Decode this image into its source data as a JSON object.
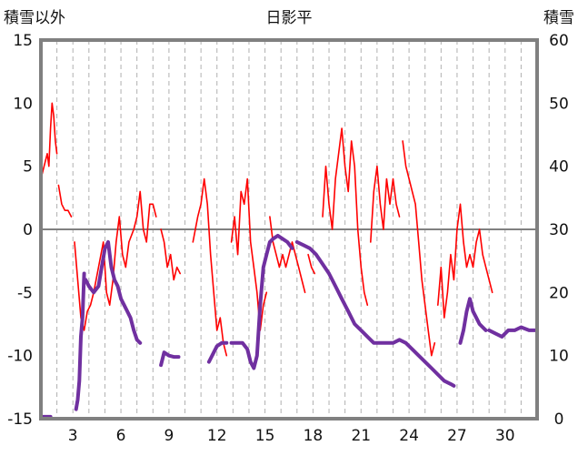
{
  "chart_data": {
    "type": "line",
    "title": "日影平",
    "y_left_label": "積雪以外",
    "y_right_label": "積雪",
    "x_ticks": [
      "3",
      "6",
      "9",
      "12",
      "15",
      "18",
      "21",
      "24",
      "27",
      "30"
    ],
    "x_tick_values": [
      3,
      6,
      9,
      12,
      15,
      18,
      21,
      24,
      27,
      30
    ],
    "xlim": [
      1,
      32
    ],
    "ylim_left": [
      -15,
      15
    ],
    "ylim_right": [
      0,
      60
    ],
    "y_left_ticks": [
      "15",
      "10",
      "5",
      "0",
      "-5",
      "-10",
      "-15"
    ],
    "y_right_ticks": [
      "60",
      "50",
      "40",
      "30",
      "20",
      "10",
      "0"
    ],
    "grid": "vertical dashed daily lines",
    "zero_line": 0,
    "colors": {
      "temperature": "#ff0000",
      "snow": "#7030a0",
      "frame": "#808080",
      "grid": "#b0b0b0"
    },
    "series": [
      {
        "axis": "left",
        "color": "#ff0000",
        "segments": [
          [
            [
              1.0,
              4
            ],
            [
              1.2,
              5
            ],
            [
              1.4,
              6
            ],
            [
              1.5,
              5
            ],
            [
              1.6,
              8
            ],
            [
              1.7,
              10
            ],
            [
              1.8,
              9
            ],
            [
              1.9,
              7
            ],
            [
              2.0,
              6
            ]
          ],
          [
            [
              2.1,
              3.5
            ],
            [
              2.3,
              2
            ],
            [
              2.5,
              1.5
            ],
            [
              2.7,
              1.5
            ],
            [
              2.9,
              1
            ]
          ],
          [
            [
              3.1,
              -1
            ],
            [
              3.3,
              -4
            ],
            [
              3.5,
              -7
            ],
            [
              3.7,
              -8
            ],
            [
              3.9,
              -6.5
            ],
            [
              4.1,
              -6
            ],
            [
              4.3,
              -5
            ],
            [
              4.6,
              -3
            ],
            [
              4.9,
              -1
            ],
            [
              5.1,
              -5
            ],
            [
              5.3,
              -6
            ],
            [
              5.5,
              -4
            ],
            [
              5.7,
              -1
            ],
            [
              5.9,
              1
            ],
            [
              6.1,
              -2
            ],
            [
              6.3,
              -3
            ],
            [
              6.5,
              -1
            ],
            [
              6.8,
              0
            ],
            [
              7.0,
              1
            ],
            [
              7.2,
              3
            ],
            [
              7.4,
              0
            ],
            [
              7.6,
              -1
            ],
            [
              7.8,
              2
            ],
            [
              8.0,
              2
            ],
            [
              8.2,
              1
            ]
          ],
          [
            [
              8.5,
              0
            ],
            [
              8.7,
              -1
            ],
            [
              8.9,
              -3
            ],
            [
              9.1,
              -2
            ],
            [
              9.3,
              -4
            ],
            [
              9.5,
              -3
            ],
            [
              9.7,
              -3.5
            ]
          ],
          [
            [
              10.5,
              -1
            ],
            [
              10.8,
              1
            ],
            [
              11.0,
              2
            ],
            [
              11.2,
              4
            ],
            [
              11.4,
              2
            ],
            [
              11.6,
              -2
            ],
            [
              11.8,
              -5
            ],
            [
              12.0,
              -8
            ],
            [
              12.2,
              -7
            ],
            [
              12.4,
              -9
            ],
            [
              12.6,
              -10
            ]
          ],
          [
            [
              12.9,
              -1
            ],
            [
              13.1,
              1
            ],
            [
              13.3,
              -2
            ],
            [
              13.5,
              3
            ],
            [
              13.7,
              2
            ],
            [
              13.9,
              4
            ],
            [
              14.1,
              -1
            ],
            [
              14.3,
              -3
            ],
            [
              14.5,
              -5
            ],
            [
              14.7,
              -8
            ],
            [
              14.9,
              -6
            ],
            [
              15.1,
              -5
            ]
          ],
          [
            [
              15.3,
              1
            ],
            [
              15.5,
              -1
            ],
            [
              15.7,
              -2
            ],
            [
              15.9,
              -3
            ],
            [
              16.1,
              -2
            ],
            [
              16.3,
              -3
            ],
            [
              16.5,
              -2
            ],
            [
              16.7,
              -1
            ],
            [
              16.9,
              -2
            ],
            [
              17.1,
              -3
            ],
            [
              17.3,
              -4
            ],
            [
              17.5,
              -5
            ]
          ],
          [
            [
              17.7,
              -2
            ],
            [
              17.9,
              -3
            ],
            [
              18.1,
              -3.5
            ]
          ],
          [
            [
              18.6,
              1
            ],
            [
              18.8,
              5
            ],
            [
              19.0,
              2
            ],
            [
              19.2,
              0
            ],
            [
              19.4,
              4
            ],
            [
              19.6,
              6
            ],
            [
              19.8,
              8
            ],
            [
              20.0,
              5
            ],
            [
              20.2,
              3
            ],
            [
              20.4,
              7
            ],
            [
              20.6,
              5
            ],
            [
              20.8,
              0
            ],
            [
              21.0,
              -3
            ],
            [
              21.2,
              -5
            ],
            [
              21.4,
              -6
            ]
          ],
          [
            [
              21.6,
              -1
            ],
            [
              21.8,
              3
            ],
            [
              22.0,
              5
            ],
            [
              22.2,
              2
            ],
            [
              22.4,
              0
            ],
            [
              22.6,
              4
            ],
            [
              22.8,
              2
            ],
            [
              23.0,
              4
            ],
            [
              23.2,
              2
            ],
            [
              23.4,
              1
            ]
          ],
          [
            [
              23.6,
              7
            ],
            [
              23.8,
              5
            ],
            [
              24.0,
              4
            ],
            [
              24.2,
              3
            ],
            [
              24.4,
              2
            ],
            [
              24.6,
              -1
            ],
            [
              24.8,
              -4
            ],
            [
              25.0,
              -6
            ],
            [
              25.2,
              -8
            ],
            [
              25.4,
              -10
            ],
            [
              25.6,
              -9
            ]
          ],
          [
            [
              25.8,
              -6
            ],
            [
              26.0,
              -3
            ],
            [
              26.2,
              -7
            ],
            [
              26.4,
              -5
            ],
            [
              26.6,
              -2
            ],
            [
              26.8,
              -4
            ],
            [
              27.0,
              0
            ],
            [
              27.2,
              2
            ],
            [
              27.4,
              -1
            ],
            [
              27.6,
              -3
            ],
            [
              27.8,
              -2
            ],
            [
              28.0,
              -3
            ],
            [
              28.2,
              -1
            ],
            [
              28.4,
              0
            ],
            [
              28.6,
              -2
            ],
            [
              28.8,
              -3
            ],
            [
              29.0,
              -4
            ],
            [
              29.2,
              -5
            ]
          ]
        ]
      },
      {
        "axis": "right",
        "color": "#7030a0",
        "segments": [
          [
            [
              1.0,
              0.3
            ],
            [
              1.6,
              0.3
            ]
          ],
          [
            [
              3.2,
              1.5
            ],
            [
              3.3,
              3
            ],
            [
              3.4,
              6
            ],
            [
              3.5,
              13
            ],
            [
              3.6,
              16
            ],
            [
              3.7,
              23
            ]
          ],
          [
            [
              3.8,
              22
            ],
            [
              4.0,
              21
            ],
            [
              4.3,
              20
            ],
            [
              4.6,
              21
            ],
            [
              4.8,
              24
            ],
            [
              5.0,
              27
            ],
            [
              5.2,
              28
            ],
            [
              5.4,
              24
            ],
            [
              5.6,
              22
            ],
            [
              5.8,
              21
            ],
            [
              6.0,
              19
            ],
            [
              6.2,
              18
            ],
            [
              6.4,
              17
            ],
            [
              6.6,
              16
            ],
            [
              6.8,
              14
            ],
            [
              7.0,
              12.5
            ],
            [
              7.2,
              12
            ]
          ],
          [
            [
              8.5,
              8.5
            ],
            [
              8.7,
              10.5
            ],
            [
              9.0,
              10
            ],
            [
              9.3,
              9.8
            ],
            [
              9.6,
              9.8
            ]
          ],
          [
            [
              11.5,
              9
            ],
            [
              11.8,
              10.5
            ],
            [
              12.0,
              11.5
            ],
            [
              12.3,
              12
            ],
            [
              12.6,
              12
            ]
          ],
          [
            [
              12.9,
              12
            ],
            [
              13.3,
              12
            ],
            [
              13.6,
              12
            ],
            [
              13.9,
              11
            ],
            [
              14.1,
              9
            ],
            [
              14.3,
              8
            ],
            [
              14.5,
              10
            ],
            [
              14.7,
              18
            ],
            [
              14.9,
              24
            ],
            [
              15.1,
              26
            ],
            [
              15.3,
              28
            ],
            [
              15.5,
              28.5
            ],
            [
              15.8,
              29
            ],
            [
              16.1,
              28.5
            ],
            [
              16.4,
              28
            ],
            [
              16.7,
              27
            ]
          ],
          [
            [
              17.0,
              28
            ],
            [
              17.4,
              27.5
            ],
            [
              17.8,
              27
            ],
            [
              18.2,
              26
            ],
            [
              18.6,
              24.5
            ],
            [
              19.0,
              23
            ],
            [
              19.4,
              21
            ],
            [
              19.8,
              19
            ],
            [
              20.2,
              17
            ],
            [
              20.6,
              15
            ],
            [
              21.0,
              14
            ],
            [
              21.4,
              13
            ],
            [
              21.8,
              12
            ],
            [
              22.2,
              12
            ],
            [
              22.6,
              12
            ],
            [
              23.0,
              12
            ],
            [
              23.4,
              12.5
            ],
            [
              23.8,
              12
            ],
            [
              24.2,
              11
            ],
            [
              24.6,
              10
            ],
            [
              25.0,
              9
            ],
            [
              25.4,
              8
            ],
            [
              25.8,
              7
            ],
            [
              26.2,
              6
            ],
            [
              26.6,
              5.5
            ],
            [
              26.8,
              5.2
            ]
          ],
          [
            [
              27.2,
              12
            ],
            [
              27.4,
              14
            ],
            [
              27.6,
              17
            ],
            [
              27.8,
              19
            ],
            [
              28.0,
              17
            ],
            [
              28.2,
              16
            ],
            [
              28.4,
              15
            ],
            [
              28.6,
              14.5
            ],
            [
              28.8,
              14
            ]
          ],
          [
            [
              29.0,
              14
            ],
            [
              29.4,
              13.5
            ],
            [
              29.8,
              13
            ],
            [
              30.2,
              14
            ],
            [
              30.6,
              14
            ],
            [
              31.0,
              14.5
            ],
            [
              31.5,
              14
            ],
            [
              32.0,
              14
            ]
          ]
        ]
      }
    ]
  }
}
